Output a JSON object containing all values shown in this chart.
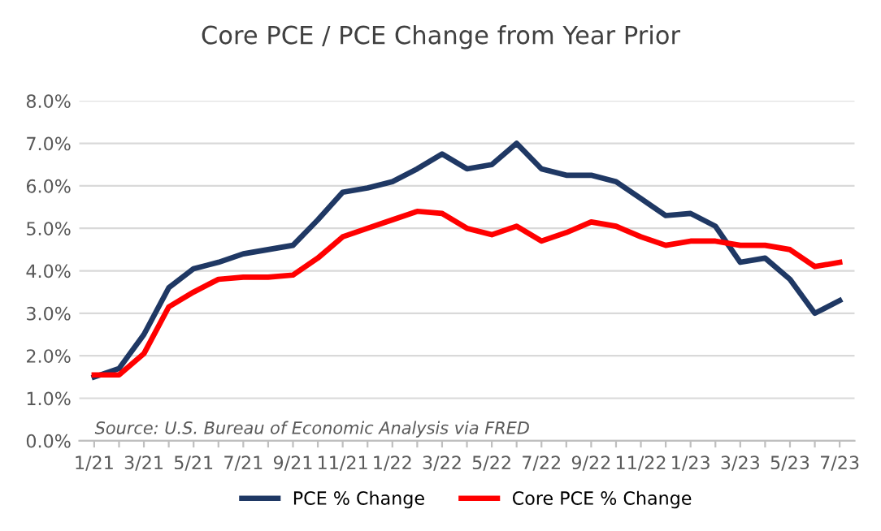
{
  "chart_data": {
    "type": "line",
    "title": "Core PCE / PCE Change from Year Prior",
    "categories": [
      "1/21",
      null,
      "3/21",
      null,
      "5/21",
      null,
      "7/21",
      null,
      "9/21",
      null,
      "11/21",
      null,
      "1/22",
      null,
      "3/22",
      null,
      "5/22",
      null,
      "7/22",
      null,
      "9/22",
      null,
      "11/22",
      null,
      "1/23",
      null,
      "3/23",
      null,
      "5/23",
      null,
      "7/23"
    ],
    "series": [
      {
        "name": "PCE % Change",
        "color": "#1f3864",
        "values": [
          1.5,
          1.7,
          2.5,
          3.6,
          4.05,
          4.2,
          4.4,
          4.5,
          4.6,
          5.2,
          5.85,
          5.95,
          6.1,
          6.4,
          6.75,
          6.4,
          6.5,
          7.0,
          6.4,
          6.25,
          6.25,
          6.1,
          5.7,
          5.3,
          5.35,
          5.05,
          4.2,
          4.3,
          3.8,
          3.0,
          3.3
        ]
      },
      {
        "name": "Core PCE % Change",
        "color": "#ff0000",
        "values": [
          1.55,
          1.55,
          2.05,
          3.15,
          3.5,
          3.8,
          3.85,
          3.85,
          3.9,
          4.3,
          4.8,
          5.0,
          5.2,
          5.4,
          5.35,
          5.0,
          4.85,
          5.05,
          4.7,
          4.9,
          5.15,
          5.05,
          4.8,
          4.6,
          4.7,
          4.7,
          4.6,
          4.6,
          4.5,
          4.1,
          4.2
        ]
      }
    ],
    "ylim": [
      0,
      8
    ],
    "yticks": [
      {
        "value": 0,
        "label": "0.0%"
      },
      {
        "value": 1,
        "label": "1.0%"
      },
      {
        "value": 2,
        "label": "2.0%"
      },
      {
        "value": 3,
        "label": "3.0%"
      },
      {
        "value": 4,
        "label": "4.0%"
      },
      {
        "value": 5,
        "label": "5.0%"
      },
      {
        "value": 6,
        "label": "6.0%"
      },
      {
        "value": 7,
        "label": "7.0%"
      },
      {
        "value": 8,
        "label": "8.0%"
      }
    ],
    "grid": "y",
    "legend": "bottom",
    "marker": "none",
    "line_style": "solid",
    "annotations": [
      "Source: U.S. Bureau of Economic Analysis via FRED"
    ]
  }
}
